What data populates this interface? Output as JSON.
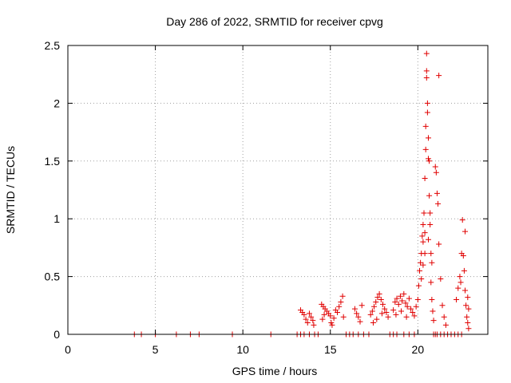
{
  "chart_data": {
    "type": "scatter",
    "title": "Day 286 of 2022, SRMTID for receiver cpvg",
    "xlabel": "GPS time / hours",
    "ylabel": "SRMTID / TECUs",
    "xlim": [
      0,
      24
    ],
    "ylim": [
      0,
      2.5
    ],
    "xticks": [
      0,
      5,
      10,
      15,
      20
    ],
    "xtick_labels": [
      "0",
      "5",
      "10",
      "15",
      "20"
    ],
    "yticks": [
      0,
      0.5,
      1,
      1.5,
      2,
      2.5
    ],
    "ytick_labels": [
      "0",
      "0.5",
      "1",
      "1.5",
      "2",
      "2.5"
    ],
    "grid": true,
    "marker": "+",
    "color": "#e00000",
    "series": [
      {
        "name": "SRMTID",
        "points": [
          [
            3.8,
            0
          ],
          [
            4.2,
            0
          ],
          [
            5.0,
            0
          ],
          [
            6.2,
            0
          ],
          [
            7.0,
            0
          ],
          [
            7.5,
            0
          ],
          [
            9.4,
            0
          ],
          [
            11.6,
            0
          ],
          [
            13.1,
            0
          ],
          [
            13.3,
            0
          ],
          [
            13.5,
            0
          ],
          [
            13.8,
            0
          ],
          [
            14.1,
            0
          ],
          [
            14.3,
            0
          ],
          [
            15.9,
            0
          ],
          [
            16.1,
            0
          ],
          [
            16.3,
            0
          ],
          [
            16.6,
            0
          ],
          [
            16.9,
            0
          ],
          [
            17.2,
            0
          ],
          [
            18.4,
            0
          ],
          [
            18.6,
            0
          ],
          [
            18.8,
            0
          ],
          [
            19.2,
            0
          ],
          [
            19.5,
            0
          ],
          [
            19.8,
            0
          ],
          [
            20.9,
            0
          ],
          [
            21.0,
            0
          ],
          [
            21.1,
            0
          ],
          [
            21.3,
            0
          ],
          [
            21.5,
            0
          ],
          [
            21.7,
            0
          ],
          [
            21.9,
            0
          ],
          [
            22.1,
            0
          ],
          [
            22.3,
            0
          ],
          [
            22.5,
            0
          ],
          [
            13.3,
            0.21
          ],
          [
            13.4,
            0.19
          ],
          [
            13.5,
            0.17
          ],
          [
            13.6,
            0.13
          ],
          [
            13.7,
            0.1
          ],
          [
            13.8,
            0.18
          ],
          [
            13.9,
            0.15
          ],
          [
            14.0,
            0.12
          ],
          [
            14.05,
            0.08
          ],
          [
            14.5,
            0.26
          ],
          [
            14.6,
            0.24
          ],
          [
            14.7,
            0.22
          ],
          [
            14.8,
            0.2
          ],
          [
            14.9,
            0.18
          ],
          [
            15.0,
            0.16
          ],
          [
            15.05,
            0.1
          ],
          [
            15.1,
            0.08
          ],
          [
            15.2,
            0.14
          ],
          [
            15.3,
            0.21
          ],
          [
            15.4,
            0.19
          ],
          [
            15.5,
            0.24
          ],
          [
            15.6,
            0.28
          ],
          [
            15.7,
            0.33
          ],
          [
            15.75,
            0.15
          ],
          [
            14.55,
            0.13
          ],
          [
            14.65,
            0.17
          ],
          [
            16.4,
            0.22
          ],
          [
            16.5,
            0.18
          ],
          [
            16.6,
            0.15
          ],
          [
            16.7,
            0.11
          ],
          [
            16.8,
            0.25
          ],
          [
            17.3,
            0.17
          ],
          [
            17.4,
            0.2
          ],
          [
            17.5,
            0.24
          ],
          [
            17.6,
            0.28
          ],
          [
            17.7,
            0.32
          ],
          [
            17.8,
            0.35
          ],
          [
            17.9,
            0.3
          ],
          [
            18.0,
            0.26
          ],
          [
            18.1,
            0.22
          ],
          [
            18.2,
            0.19
          ],
          [
            18.3,
            0.15
          ],
          [
            17.45,
            0.1
          ],
          [
            17.65,
            0.13
          ],
          [
            17.95,
            0.18
          ],
          [
            18.6,
            0.21
          ],
          [
            18.7,
            0.28
          ],
          [
            18.8,
            0.31
          ],
          [
            18.9,
            0.26
          ],
          [
            19.0,
            0.33
          ],
          [
            19.1,
            0.29
          ],
          [
            19.2,
            0.35
          ],
          [
            19.3,
            0.27
          ],
          [
            19.4,
            0.24
          ],
          [
            19.5,
            0.31
          ],
          [
            19.6,
            0.22
          ],
          [
            19.7,
            0.19
          ],
          [
            19.8,
            0.16
          ],
          [
            19.9,
            0.24
          ],
          [
            18.75,
            0.17
          ],
          [
            19.05,
            0.2
          ],
          [
            19.35,
            0.15
          ],
          [
            20.0,
            0.3
          ],
          [
            20.05,
            0.42
          ],
          [
            20.1,
            0.55
          ],
          [
            20.15,
            0.62
          ],
          [
            20.2,
            0.7
          ],
          [
            20.2,
            0.48
          ],
          [
            20.25,
            0.85
          ],
          [
            20.3,
            0.95
          ],
          [
            20.3,
            0.6
          ],
          [
            20.35,
            1.05
          ],
          [
            20.4,
            1.35
          ],
          [
            20.4,
            0.7
          ],
          [
            20.45,
            1.6
          ],
          [
            20.45,
            1.8
          ],
          [
            20.5,
            2.43
          ],
          [
            20.5,
            2.28
          ],
          [
            20.5,
            2.22
          ],
          [
            20.55,
            2.0
          ],
          [
            20.55,
            1.92
          ],
          [
            20.6,
            1.7
          ],
          [
            20.6,
            1.52
          ],
          [
            20.65,
            1.5
          ],
          [
            20.65,
            1.2
          ],
          [
            20.7,
            1.05
          ],
          [
            20.7,
            0.95
          ],
          [
            20.75,
            0.7
          ],
          [
            20.75,
            0.45
          ],
          [
            20.8,
            0.3
          ],
          [
            20.85,
            0.2
          ],
          [
            20.9,
            0.12
          ],
          [
            20.3,
            0.8
          ],
          [
            20.4,
            0.88
          ],
          [
            20.6,
            0.82
          ],
          [
            20.8,
            0.62
          ],
          [
            21.0,
            1.45
          ],
          [
            21.05,
            1.4
          ],
          [
            21.1,
            1.22
          ],
          [
            21.15,
            1.13
          ],
          [
            21.2,
            2.24
          ],
          [
            21.2,
            0.78
          ],
          [
            21.3,
            0.48
          ],
          [
            21.4,
            0.25
          ],
          [
            21.5,
            0.15
          ],
          [
            21.6,
            0.08
          ],
          [
            22.2,
            0.3
          ],
          [
            22.3,
            0.4
          ],
          [
            22.4,
            0.5
          ],
          [
            22.45,
            0.45
          ],
          [
            22.5,
            0.7
          ],
          [
            22.55,
            0.99
          ],
          [
            22.6,
            0.68
          ],
          [
            22.65,
            0.55
          ],
          [
            22.7,
            0.89
          ],
          [
            22.7,
            0.38
          ],
          [
            22.75,
            0.25
          ],
          [
            22.8,
            0.15
          ],
          [
            22.85,
            0.1
          ],
          [
            22.85,
            0.32
          ],
          [
            22.9,
            0.22
          ],
          [
            22.9,
            0.05
          ]
        ]
      }
    ]
  }
}
